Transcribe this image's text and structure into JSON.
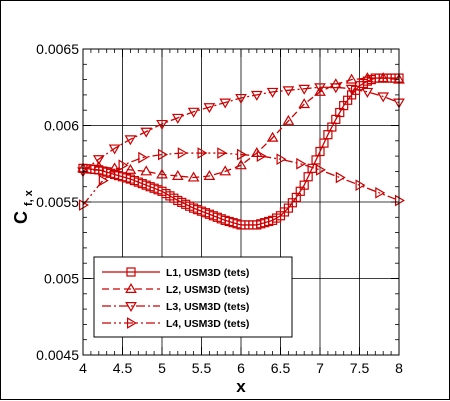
{
  "chart_data": {
    "type": "line",
    "xlabel": "x",
    "ylabel": {
      "main": "C",
      "sub": "f, x"
    },
    "xlim": [
      4,
      8
    ],
    "ylim": [
      0.0045,
      0.0065
    ],
    "x_ticks": [
      4,
      4.5,
      5,
      5.5,
      6,
      6.5,
      7,
      7.5,
      8
    ],
    "x_tick_labels": [
      "4",
      "4.5",
      "5",
      "5.5",
      "6",
      "6.5",
      "7",
      "7.5",
      "8"
    ],
    "y_ticks": [
      0.0045,
      0.005,
      0.0055,
      0.006,
      0.0065
    ],
    "y_tick_labels": [
      "0.0045",
      "0.005",
      "0.0055",
      "0.006",
      "0.0065"
    ],
    "grid": true,
    "legend_position": "bottom-left",
    "line_color": "#cc0000",
    "series": [
      {
        "name": "L1, USM3D (tets)",
        "line_style": "solid",
        "marker": "square",
        "marker_step": 0.05,
        "x": [
          4.0,
          4.2,
          4.4,
          4.6,
          4.8,
          5.0,
          5.2,
          5.4,
          5.6,
          5.8,
          6.0,
          6.2,
          6.4,
          6.5,
          6.6,
          6.7,
          6.8,
          6.9,
          7.0,
          7.1,
          7.2,
          7.3,
          7.4,
          7.5,
          7.6,
          7.7,
          7.8,
          7.9,
          8.0
        ],
        "y": [
          0.00572,
          0.00571,
          0.00568,
          0.00565,
          0.00561,
          0.00557,
          0.00551,
          0.00546,
          0.00542,
          0.00538,
          0.00535,
          0.00535,
          0.00538,
          0.00541,
          0.00546,
          0.00553,
          0.00561,
          0.00572,
          0.00583,
          0.00594,
          0.00604,
          0.00613,
          0.0062,
          0.00626,
          0.00629,
          0.00631,
          0.00631,
          0.00631,
          0.00631
        ]
      },
      {
        "name": "L2, USM3D (tets)",
        "line_style": "dash",
        "marker": "triangle-up",
        "marker_step": 0.2,
        "x": [
          4.0,
          4.2,
          4.4,
          4.6,
          4.8,
          5.0,
          5.2,
          5.4,
          5.6,
          5.8,
          6.0,
          6.2,
          6.4,
          6.6,
          6.8,
          7.0,
          7.2,
          7.4,
          7.6,
          7.8,
          8.0
        ],
        "y": [
          0.00572,
          0.00573,
          0.00572,
          0.00571,
          0.0057,
          0.00568,
          0.00567,
          0.00566,
          0.00567,
          0.0057,
          0.00574,
          0.00582,
          0.00592,
          0.00603,
          0.00614,
          0.00622,
          0.00627,
          0.0063,
          0.00631,
          0.00631,
          0.0063
        ]
      },
      {
        "name": "L3, USM3D (tets)",
        "line_style": "dashdot",
        "marker": "triangle-down",
        "marker_step": 0.2,
        "x": [
          4.0,
          4.2,
          4.4,
          4.6,
          4.8,
          5.0,
          5.2,
          5.4,
          5.6,
          5.8,
          6.0,
          6.2,
          6.4,
          6.6,
          6.8,
          7.0,
          7.2,
          7.4,
          7.6,
          7.8,
          8.0
        ],
        "y": [
          0.0057,
          0.00578,
          0.00585,
          0.00591,
          0.00596,
          0.00601,
          0.00605,
          0.00609,
          0.00612,
          0.00615,
          0.00618,
          0.0062,
          0.00622,
          0.00623,
          0.00624,
          0.00625,
          0.00625,
          0.00624,
          0.00622,
          0.00619,
          0.00615
        ]
      },
      {
        "name": "L4, USM3D (tets)",
        "line_style": "dashdotdot",
        "marker": "triangle-right",
        "marker_step": 0.25,
        "x": [
          4.0,
          4.25,
          4.5,
          4.75,
          5.0,
          5.25,
          5.5,
          5.75,
          6.0,
          6.25,
          6.5,
          6.75,
          7.0,
          7.25,
          7.5,
          7.75,
          8.0
        ],
        "y": [
          0.00548,
          0.00564,
          0.00574,
          0.00579,
          0.00581,
          0.00582,
          0.00582,
          0.00582,
          0.00581,
          0.0058,
          0.00578,
          0.00575,
          0.00571,
          0.00566,
          0.00561,
          0.00556,
          0.00551
        ]
      }
    ]
  }
}
